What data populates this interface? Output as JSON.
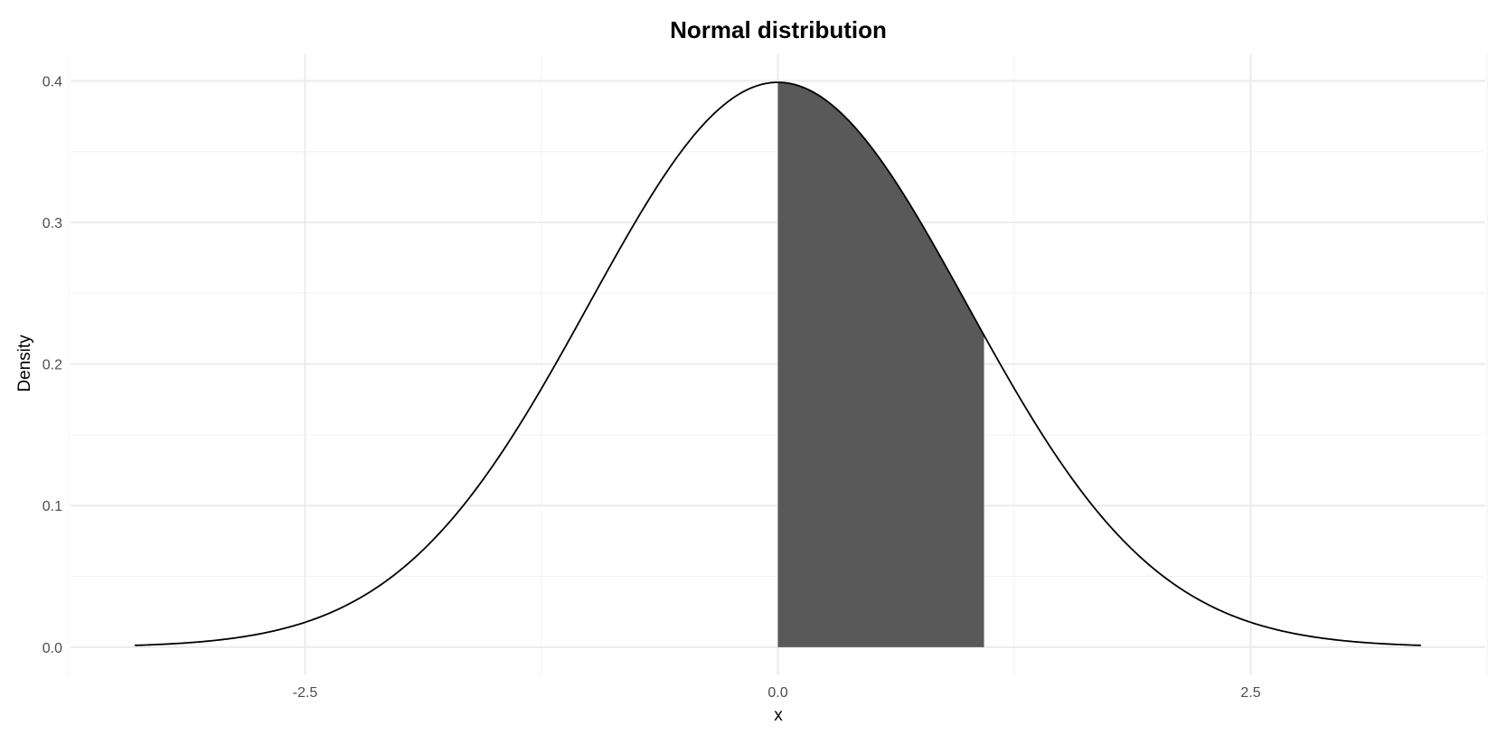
{
  "chart_data": {
    "type": "area",
    "title": "Normal distribution",
    "xlabel": "x",
    "ylabel": "Density",
    "distribution": {
      "mean": 0,
      "sd": 1
    },
    "x_range": [
      -3.4,
      3.4
    ],
    "xlim": [
      -3.74,
      3.74
    ],
    "ylim": [
      -0.0199,
      0.4188
    ],
    "x_ticks": [
      {
        "value": -2.5,
        "label": "-2.5"
      },
      {
        "value": 0,
        "label": "0.0"
      },
      {
        "value": 2.5,
        "label": "2.5"
      }
    ],
    "x_minor_ticks": [
      -3.75,
      -1.25,
      1.25,
      3.75
    ],
    "y_ticks": [
      {
        "value": 0,
        "label": "0.0"
      },
      {
        "value": 0.1,
        "label": "0.1"
      },
      {
        "value": 0.2,
        "label": "0.2"
      },
      {
        "value": 0.3,
        "label": "0.3"
      },
      {
        "value": 0.4,
        "label": "0.4"
      }
    ],
    "y_minor_ticks": [
      0.05,
      0.15,
      0.25,
      0.35
    ],
    "shaded_region": {
      "from": 0,
      "to": 1.09
    },
    "grid": true,
    "legend": "none",
    "colors": {
      "background": "#ffffff",
      "grid_major": "#ebebeb",
      "grid_minor": "#f4f4f4",
      "curve": "#000000",
      "fill": "#595959"
    }
  }
}
